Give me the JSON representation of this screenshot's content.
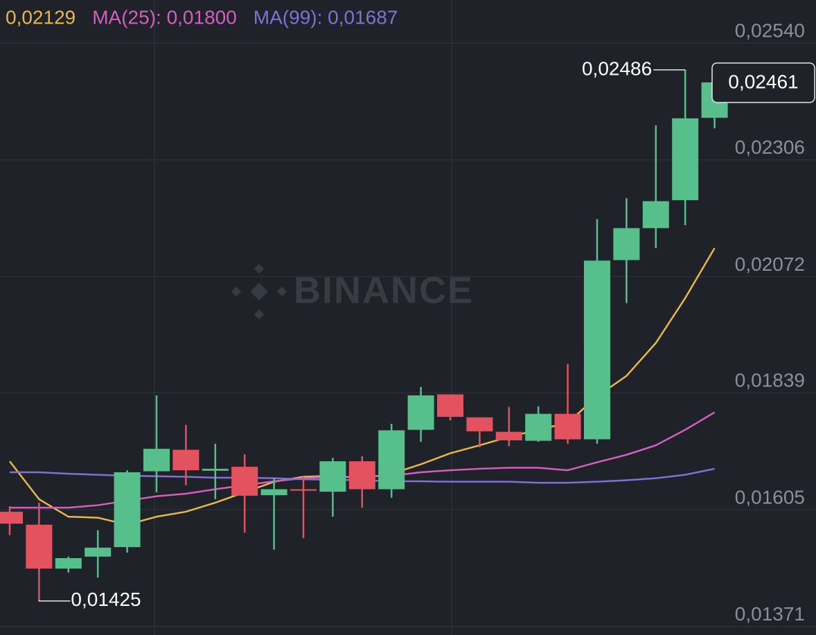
{
  "chart_data": {
    "type": "candlestick",
    "legend": [
      {
        "label": "0,02129",
        "color": "#e8b84a"
      },
      {
        "label": "MA(25): 0,01800",
        "color": "#d35fbf"
      },
      {
        "label": "MA(99): 0,01687",
        "color": "#8470d2"
      }
    ],
    "watermark": "BINANCE",
    "up_color": "#57bf8b",
    "down_color": "#e2535f",
    "open": [
      0.01601,
      0.01575,
      0.01487,
      0.01511,
      0.0153,
      0.01682,
      0.01725,
      0.01683,
      0.01691,
      0.01634,
      0.01646,
      0.01641,
      0.01702,
      0.01646,
      0.01765,
      0.01836,
      0.0179,
      0.01761,
      0.01743,
      0.01797,
      0.01746,
      0.02105,
      0.02169,
      0.02225,
      0.0239
    ],
    "high": [
      0.01612,
      0.01619,
      0.01511,
      0.01564,
      0.01684,
      0.01834,
      0.01775,
      0.01737,
      0.01716,
      0.01668,
      0.01671,
      0.01709,
      0.01712,
      0.01777,
      0.01851,
      0.01836,
      0.0179,
      0.01811,
      0.01812,
      0.01897,
      0.02187,
      0.02229,
      0.02375,
      0.02486,
      0.02461
    ],
    "low": [
      0.01554,
      0.01425,
      0.01479,
      0.01469,
      0.01519,
      0.0164,
      0.01654,
      0.01626,
      0.01559,
      0.01525,
      0.01548,
      0.01591,
      0.01609,
      0.01629,
      0.01741,
      0.01784,
      0.0173,
      0.01732,
      0.01741,
      0.01737,
      0.01737,
      0.02019,
      0.02129,
      0.02175,
      0.02369
    ],
    "close": [
      0.01577,
      0.01487,
      0.01508,
      0.01529,
      0.0168,
      0.01727,
      0.01684,
      0.01687,
      0.01633,
      0.01646,
      0.01643,
      0.01702,
      0.01646,
      0.01764,
      0.01834,
      0.01791,
      0.01762,
      0.01744,
      0.01797,
      0.01746,
      0.02104,
      0.02169,
      0.02223,
      0.02389,
      0.02461
    ],
    "series": [
      {
        "color": "#e8b84a",
        "values": [
          0.01702,
          0.01626,
          0.01591,
          0.01589,
          0.01575,
          0.01591,
          0.01601,
          0.01619,
          0.0164,
          0.01661,
          0.01671,
          0.01673,
          0.01668,
          0.01677,
          0.01696,
          0.01718,
          0.01734,
          0.01751,
          0.01765,
          0.01779,
          0.01832,
          0.01873,
          0.01939,
          0.02029,
          0.02129
        ]
      },
      {
        "color": "#d35fbf",
        "values": [
          0.01609,
          0.01609,
          0.01609,
          0.01614,
          0.01623,
          0.01632,
          0.01637,
          0.01646,
          0.01654,
          0.01662,
          0.01668,
          0.01671,
          0.01671,
          0.01673,
          0.0168,
          0.01684,
          0.01687,
          0.01689,
          0.01689,
          0.01684,
          0.017,
          0.01715,
          0.01734,
          0.01765,
          0.018
        ]
      },
      {
        "color": "#8470d2",
        "values": [
          0.0168,
          0.0168,
          0.01677,
          0.01675,
          0.01673,
          0.01672,
          0.01671,
          0.01669,
          0.01669,
          0.01668,
          0.01666,
          0.01665,
          0.01664,
          0.01662,
          0.01662,
          0.01661,
          0.01661,
          0.01661,
          0.01659,
          0.01659,
          0.01661,
          0.01664,
          0.01668,
          0.01675,
          0.01687
        ]
      }
    ],
    "annotations": [
      {
        "value": 0.02486,
        "label": "0,02486"
      },
      {
        "value": 0.01425,
        "label": "0,01425"
      }
    ],
    "last_price": {
      "value": 0.02461,
      "label": "0,02461"
    },
    "ylim": [
      0.01354,
      0.02626
    ],
    "yticks": [
      {
        "value": 0.0254,
        "label": "0,02540"
      },
      {
        "value": 0.02306,
        "label": "0,02306"
      },
      {
        "value": 0.02072,
        "label": "0,02072"
      },
      {
        "value": 0.01839,
        "label": "0,01839"
      },
      {
        "value": 0.01605,
        "label": "0,01605"
      },
      {
        "value": 0.01371,
        "label": "0,01371"
      }
    ],
    "grid": true
  }
}
